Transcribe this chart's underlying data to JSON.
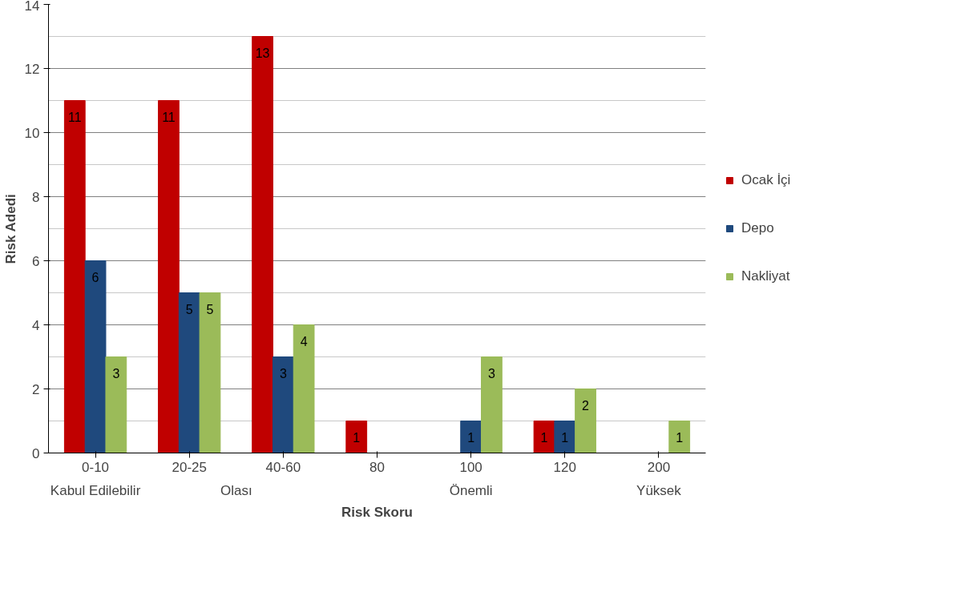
{
  "chart_data": {
    "type": "bar",
    "xlabel": "Risk Skoru",
    "ylabel": "Risk Adedi",
    "categories": [
      "0-10",
      "20-25",
      "40-60",
      "80",
      "100",
      "120",
      "200"
    ],
    "annotations": [
      "Kabul Edilebilir",
      "Olası",
      "Önemli",
      "Yüksek"
    ],
    "series": [
      {
        "name": "Ocak İçi",
        "color": "#c00000",
        "values": [
          11,
          11,
          13,
          1,
          null,
          1,
          null
        ]
      },
      {
        "name": "Depo",
        "color": "#1f497d",
        "values": [
          6,
          5,
          3,
          null,
          1,
          1,
          null
        ]
      },
      {
        "name": "Nakliyat",
        "color": "#9bbb59",
        "values": [
          3,
          5,
          4,
          null,
          3,
          2,
          1
        ]
      }
    ],
    "ylim": [
      0,
      14
    ],
    "yticks": [
      0,
      2,
      4,
      6,
      8,
      10,
      12,
      14
    ],
    "grid": "y",
    "legend": "right",
    "data_labels": true
  }
}
